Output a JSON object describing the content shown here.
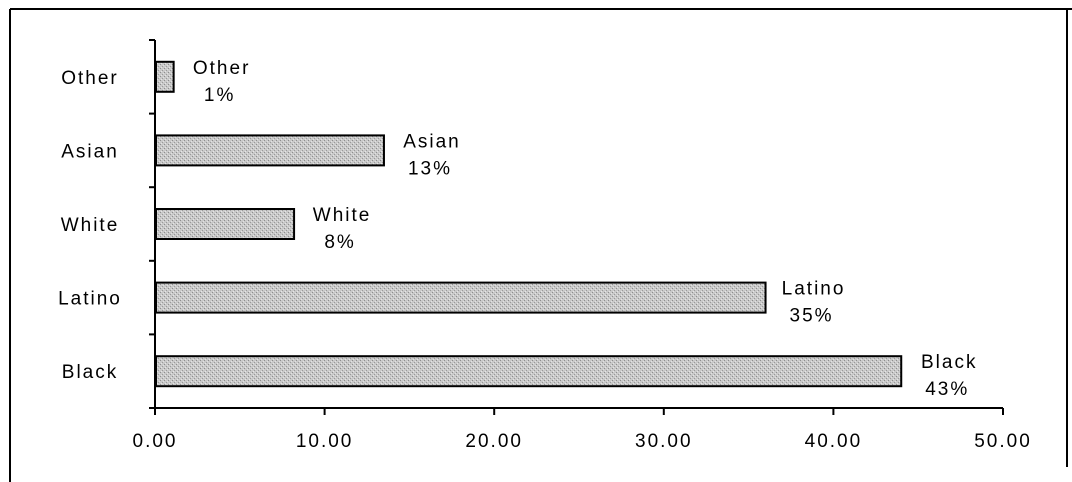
{
  "chart_data": {
    "type": "bar",
    "orientation": "horizontal",
    "categories": [
      "Black",
      "Latino",
      "White",
      "Asian",
      "Other"
    ],
    "values": [
      44.0,
      36.0,
      8.2,
      13.5,
      1.1
    ],
    "data_labels": [
      {
        "name": "Black",
        "pct": "43%"
      },
      {
        "name": "Latino",
        "pct": "35%"
      },
      {
        "name": "White",
        "pct": "8%"
      },
      {
        "name": "Asian",
        "pct": "13%"
      },
      {
        "name": "Other",
        "pct": "1%"
      }
    ],
    "x_ticks": [
      "0.00",
      "10.00",
      "20.00",
      "30.00",
      "40.00",
      "50.00"
    ],
    "xlim": [
      0,
      50
    ],
    "title": "",
    "xlabel": "",
    "ylabel": "",
    "grid": false,
    "legend": "none",
    "bar_color": "#c4c4c4",
    "bar_border_color": "#000000"
  }
}
